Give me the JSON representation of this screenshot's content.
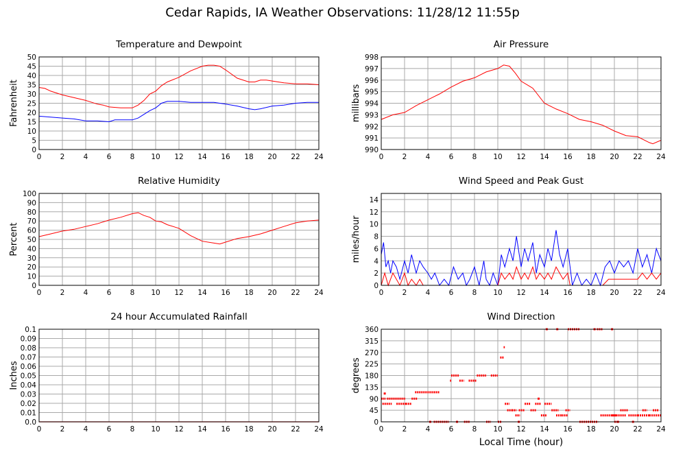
{
  "title": "Cedar Rapids, IA Weather Observations: 11/28/12 11:55p",
  "xlabel": "Local Time (hour)",
  "chart_data": [
    {
      "id": "temp",
      "type": "line",
      "title": "Temperature and Dewpoint",
      "ylabel": "Fahrenheit",
      "xlim": [
        0,
        24
      ],
      "ylim": [
        0,
        50
      ],
      "xticks": [
        0,
        2,
        4,
        6,
        8,
        10,
        12,
        14,
        16,
        18,
        20,
        22,
        24
      ],
      "yticks": [
        0,
        5,
        10,
        15,
        20,
        25,
        30,
        35,
        40,
        45,
        50
      ],
      "ytick_labels": [
        "0",
        "5",
        "10",
        "15",
        "20",
        "25",
        "30",
        "35",
        "40",
        "45",
        "50"
      ],
      "grid": true,
      "series": [
        {
          "color": "#ff0000",
          "x": [
            0,
            0.5,
            1,
            2,
            3,
            4,
            5,
            5.5,
            6,
            7,
            8,
            8.5,
            9,
            9.5,
            10,
            10.5,
            11,
            12,
            13,
            14,
            14.5,
            15,
            15.5,
            16,
            17,
            18,
            18.5,
            19,
            19.5,
            20,
            21,
            22,
            23,
            24
          ],
          "y": [
            33.5,
            33,
            31.5,
            29.5,
            28,
            26.5,
            24.5,
            24,
            23,
            22.5,
            22.5,
            24,
            26.5,
            30,
            31.5,
            34.5,
            36.5,
            39,
            42.5,
            45,
            45.5,
            45.5,
            45,
            43,
            38.5,
            36.5,
            36.5,
            37.5,
            37.5,
            37,
            36,
            35.5,
            35.5,
            35
          ]
        },
        {
          "color": "#0000ff",
          "x": [
            0,
            1,
            2,
            3,
            4,
            5,
            6,
            6.5,
            7,
            8,
            8.5,
            9,
            9.5,
            10,
            10.5,
            11,
            11.5,
            12,
            13,
            14,
            15,
            16,
            17,
            18,
            18.5,
            19,
            20,
            21,
            22,
            23,
            24
          ],
          "y": [
            18,
            17.5,
            17,
            16.5,
            15.5,
            15.5,
            15,
            16,
            16,
            16,
            17,
            19,
            21,
            22.5,
            25,
            26,
            26,
            26,
            25.5,
            25.5,
            25.5,
            24.5,
            23.5,
            22,
            21.5,
            22,
            23.5,
            24,
            25,
            25.5,
            25.5
          ]
        }
      ]
    },
    {
      "id": "pres",
      "type": "line",
      "title": "Air Pressure",
      "ylabel": "millibars",
      "xlim": [
        0,
        24
      ],
      "ylim": [
        990,
        998
      ],
      "xticks": [
        0,
        2,
        4,
        6,
        8,
        10,
        12,
        14,
        16,
        18,
        20,
        22,
        24
      ],
      "yticks": [
        990,
        991,
        992,
        993,
        994,
        995,
        996,
        997,
        998
      ],
      "ytick_labels": [
        "990",
        "991",
        "992",
        "993",
        "994",
        "995",
        "996",
        "997",
        "998"
      ],
      "grid": true,
      "series": [
        {
          "color": "#ff0000",
          "x": [
            0,
            1,
            2,
            3,
            4,
            5,
            6,
            7,
            8,
            9,
            10,
            10.5,
            11,
            11.5,
            12,
            13,
            14,
            15,
            16,
            17,
            18,
            19,
            20,
            21,
            22,
            23,
            23.3,
            24
          ],
          "y": [
            992.6,
            993,
            993.2,
            993.8,
            994.3,
            994.8,
            995.4,
            995.9,
            996.2,
            996.7,
            997,
            997.3,
            997.2,
            996.6,
            995.9,
            995.3,
            994,
            993.5,
            993.1,
            992.6,
            992.4,
            992.1,
            991.6,
            991.2,
            991.1,
            990.6,
            990.5,
            990.8
          ]
        }
      ]
    },
    {
      "id": "rh",
      "type": "line",
      "title": "Relative Humidity",
      "ylabel": "Percent",
      "xlim": [
        0,
        24
      ],
      "ylim": [
        0,
        100
      ],
      "xticks": [
        0,
        2,
        4,
        6,
        8,
        10,
        12,
        14,
        16,
        18,
        20,
        22,
        24
      ],
      "yticks": [
        0,
        10,
        20,
        30,
        40,
        50,
        60,
        70,
        80,
        90,
        100
      ],
      "ytick_labels": [
        "0",
        "10",
        "20",
        "30",
        "40",
        "50",
        "60",
        "70",
        "80",
        "90",
        "100"
      ],
      "grid": true,
      "series": [
        {
          "color": "#ff0000",
          "x": [
            0,
            1,
            2,
            3,
            4,
            5,
            6,
            7,
            8,
            8.5,
            9,
            9.5,
            10,
            10.5,
            11,
            12,
            13,
            14,
            15,
            15.5,
            16,
            17,
            18,
            19,
            20,
            21,
            22,
            23,
            24
          ],
          "y": [
            53,
            56,
            59,
            61,
            64,
            67,
            71,
            74,
            78,
            79,
            76,
            74,
            70,
            69,
            66,
            62,
            54,
            48,
            46,
            45,
            47,
            51,
            53,
            56,
            60,
            64,
            68,
            70,
            71
          ]
        }
      ]
    },
    {
      "id": "wind",
      "type": "line",
      "title": "Wind Speed and Peak Gust",
      "ylabel": "miles/hour",
      "xlim": [
        0,
        24
      ],
      "ylim": [
        0,
        15
      ],
      "xticks": [
        0,
        2,
        4,
        6,
        8,
        10,
        12,
        14,
        16,
        18,
        20,
        22,
        24
      ],
      "yticks": [
        0,
        2,
        4,
        6,
        8,
        10,
        12,
        14
      ],
      "ytick_labels": [
        "0",
        "2",
        "4",
        "6",
        "8",
        "10",
        "12",
        "14"
      ],
      "grid": true,
      "series": [
        {
          "color": "#0000ff",
          "x": [
            0,
            0.2,
            0.4,
            0.6,
            0.8,
            1,
            1.3,
            1.6,
            2,
            2.3,
            2.6,
            3,
            3.3,
            3.6,
            4,
            4.3,
            4.6,
            5,
            5.4,
            5.8,
            6.2,
            6.6,
            7,
            7.3,
            7.6,
            8,
            8.4,
            8.8,
            9,
            9.3,
            9.6,
            10,
            10.3,
            10.6,
            11,
            11.3,
            11.6,
            12,
            12.3,
            12.6,
            13,
            13.3,
            13.6,
            14,
            14.3,
            14.6,
            15,
            15.3,
            15.6,
            16,
            16.4,
            16.8,
            17.2,
            17.6,
            18,
            18.4,
            18.8,
            19.2,
            19.6,
            20,
            20.4,
            20.8,
            21.2,
            21.6,
            22,
            22.4,
            22.8,
            23.2,
            23.6,
            24
          ],
          "y": [
            5,
            7,
            3,
            4,
            2,
            4,
            3,
            1,
            4,
            2,
            5,
            2,
            4,
            3,
            2,
            1,
            2,
            0,
            1,
            0,
            3,
            1,
            2,
            0,
            1,
            3,
            0,
            4,
            1,
            0,
            2,
            0,
            5,
            3,
            6,
            4,
            8,
            3,
            6,
            4,
            7,
            2,
            5,
            3,
            6,
            4,
            9,
            5,
            3,
            6,
            0,
            2,
            0,
            1,
            0,
            2,
            0,
            3,
            4,
            2,
            4,
            3,
            4,
            2,
            6,
            3,
            5,
            2,
            6,
            4
          ]
        },
        {
          "color": "#ff0000",
          "x": [
            0,
            0.3,
            0.6,
            1,
            1.3,
            1.6,
            2,
            2.3,
            2.6,
            3,
            3.3,
            3.6,
            4,
            10,
            10.3,
            10.6,
            11,
            11.3,
            11.6,
            12,
            12.3,
            12.6,
            13,
            13.3,
            13.6,
            14,
            14.3,
            14.6,
            15,
            15.3,
            15.6,
            16,
            16.2,
            19,
            19.5,
            22,
            22.4,
            22.8,
            23.2,
            23.6,
            24
          ],
          "y": [
            0,
            2,
            0,
            2,
            1,
            0,
            2,
            0,
            1,
            0,
            1,
            0,
            0,
            0,
            2,
            1,
            2,
            1,
            3,
            1,
            2,
            1,
            3,
            1,
            2,
            1,
            2,
            1,
            3,
            2,
            1,
            2,
            0,
            0,
            1,
            1,
            2,
            1,
            2,
            1,
            2
          ]
        }
      ]
    },
    {
      "id": "rain",
      "type": "line",
      "title": "24 hour Accumulated Rainfall",
      "ylabel": "Inches",
      "xlim": [
        0,
        24
      ],
      "ylim": [
        0,
        0.1
      ],
      "xticks": [
        0,
        2,
        4,
        6,
        8,
        10,
        12,
        14,
        16,
        18,
        20,
        22,
        24
      ],
      "yticks": [
        0,
        0.01,
        0.02,
        0.03,
        0.04,
        0.05,
        0.06,
        0.07,
        0.08,
        0.09,
        0.1
      ],
      "ytick_labels": [
        "0.0",
        "0.01",
        "0.02",
        "0.03",
        "0.04",
        "0.05",
        "0.06",
        "0.07",
        "0.08",
        "0.09",
        "0.1"
      ],
      "grid": true,
      "series": [
        {
          "color": "#ff0000",
          "x": [
            0,
            24
          ],
          "y": [
            0,
            0
          ]
        }
      ]
    },
    {
      "id": "wdir",
      "type": "scatter",
      "title": "Wind Direction",
      "ylabel": "degrees",
      "xlim": [
        0,
        24
      ],
      "ylim": [
        0,
        360
      ],
      "xticks": [
        0,
        2,
        4,
        6,
        8,
        10,
        12,
        14,
        16,
        18,
        20,
        22,
        24
      ],
      "yticks": [
        0,
        45,
        90,
        135,
        180,
        225,
        270,
        315,
        360
      ],
      "ytick_labels": [
        "0",
        "45",
        "90",
        "135",
        "180",
        "225",
        "270",
        "315",
        "360"
      ],
      "grid": true,
      "series": [
        {
          "color": "#ff0000",
          "segments": [
            [
              0,
              0.4,
              90
            ],
            [
              0.1,
              0.9,
              70
            ],
            [
              0.5,
              2.1,
              90
            ],
            [
              1.3,
              2.1,
              70
            ],
            [
              2.1,
              2.6,
              70
            ],
            [
              2.6,
              3.1,
              90
            ],
            [
              2.9,
              4.5,
              115
            ],
            [
              4.5,
              5.0,
              115
            ],
            [
              4.5,
              5.8,
              0
            ],
            [
              5.9,
              6.0,
              160
            ],
            [
              6.0,
              6.7,
              180
            ],
            [
              6.7,
              7.1,
              160
            ],
            [
              7.1,
              7.6,
              0
            ],
            [
              7.5,
              8.2,
              160
            ],
            [
              8.2,
              9.0,
              180
            ],
            [
              9.0,
              9.4,
              0
            ],
            [
              9.4,
              10.0,
              180
            ],
            [
              10.0,
              10.3,
              0
            ],
            [
              10.2,
              10.5,
              250
            ],
            [
              10.5,
              10.6,
              290
            ],
            [
              10.6,
              11.0,
              70
            ],
            [
              10.8,
              11.3,
              45
            ],
            [
              11.2,
              11.6,
              45
            ],
            [
              11.5,
              11.9,
              25
            ],
            [
              11.8,
              12.3,
              45
            ],
            [
              12.3,
              12.8,
              70
            ],
            [
              12.8,
              13.3,
              45
            ],
            [
              13.2,
              13.7,
              70
            ],
            [
              13.7,
              14.2,
              25
            ],
            [
              14.0,
              14.6,
              70
            ],
            [
              14.6,
              15.2,
              45
            ],
            [
              15.0,
              15.5,
              25
            ],
            [
              15.5,
              16.0,
              25
            ],
            [
              15.8,
              16.2,
              45
            ],
            [
              16.0,
              17.0,
              360
            ],
            [
              17.0,
              18.6,
              0
            ],
            [
              18.5,
              19.0,
              360
            ],
            [
              18.8,
              20.2,
              25
            ],
            [
              19.8,
              21.0,
              25
            ],
            [
              20.0,
              20.4,
              0
            ],
            [
              20.5,
              21.2,
              45
            ],
            [
              21.2,
              22.0,
              25
            ],
            [
              22.0,
              23.0,
              25
            ],
            [
              22.4,
              22.8,
              45
            ],
            [
              23.0,
              24.0,
              25
            ],
            [
              23.3,
              23.8,
              45
            ]
          ],
          "points": [
            [
              0.3,
              110
            ],
            [
              4.2,
              0
            ],
            [
              6.5,
              0
            ],
            [
              11.8,
              0
            ],
            [
              13.5,
              90
            ],
            [
              14.2,
              360
            ],
            [
              15.1,
              360
            ],
            [
              18.3,
              360
            ],
            [
              19.8,
              360
            ],
            [
              20.3,
              0
            ],
            [
              21.6,
              0
            ]
          ]
        }
      ]
    }
  ]
}
